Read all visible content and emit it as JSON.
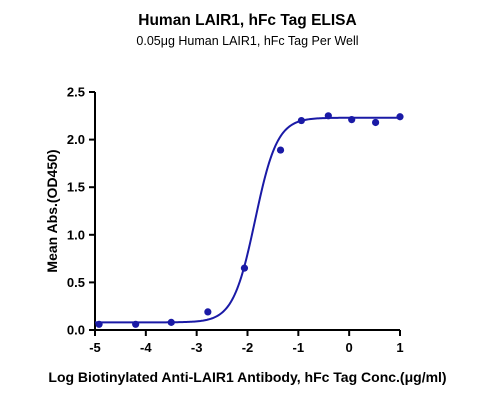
{
  "chart_data": {
    "type": "scatter",
    "title": "Human LAIR1, hFc Tag ELISA",
    "subtitle": "0.05μg Human LAIR1, hFc Tag Per Well",
    "xlabel": "Log Biotinylated Anti-LAIR1 Antibody, hFc Tag Conc.(μg/ml)",
    "ylabel": "Mean Abs.(OD450)",
    "xlim": [
      -5,
      1
    ],
    "ylim": [
      0,
      2.5
    ],
    "xticks": [
      "-5",
      "-4",
      "-3",
      "-2",
      "-1",
      "0",
      "1"
    ],
    "yticks": [
      "0.0",
      "0.5",
      "1.0",
      "1.5",
      "2.0",
      "2.5"
    ],
    "grid": false,
    "series": [
      {
        "color": "#1a1aa6",
        "points": [
          {
            "x": -4.92,
            "y": 0.06
          },
          {
            "x": -4.2,
            "y": 0.06
          },
          {
            "x": -3.5,
            "y": 0.08
          },
          {
            "x": -2.78,
            "y": 0.19
          },
          {
            "x": -2.06,
            "y": 0.65
          },
          {
            "x": -1.35,
            "y": 1.89
          },
          {
            "x": -0.94,
            "y": 2.2
          },
          {
            "x": -0.41,
            "y": 2.25
          },
          {
            "x": 0.05,
            "y": 2.21
          },
          {
            "x": 0.52,
            "y": 2.18
          },
          {
            "x": 1.0,
            "y": 2.24
          }
        ],
        "fit": {
          "model": "4PL",
          "bottom": 0.08,
          "top": 2.23,
          "log_ec50": -1.85,
          "hill": 2.0
        }
      }
    ]
  }
}
